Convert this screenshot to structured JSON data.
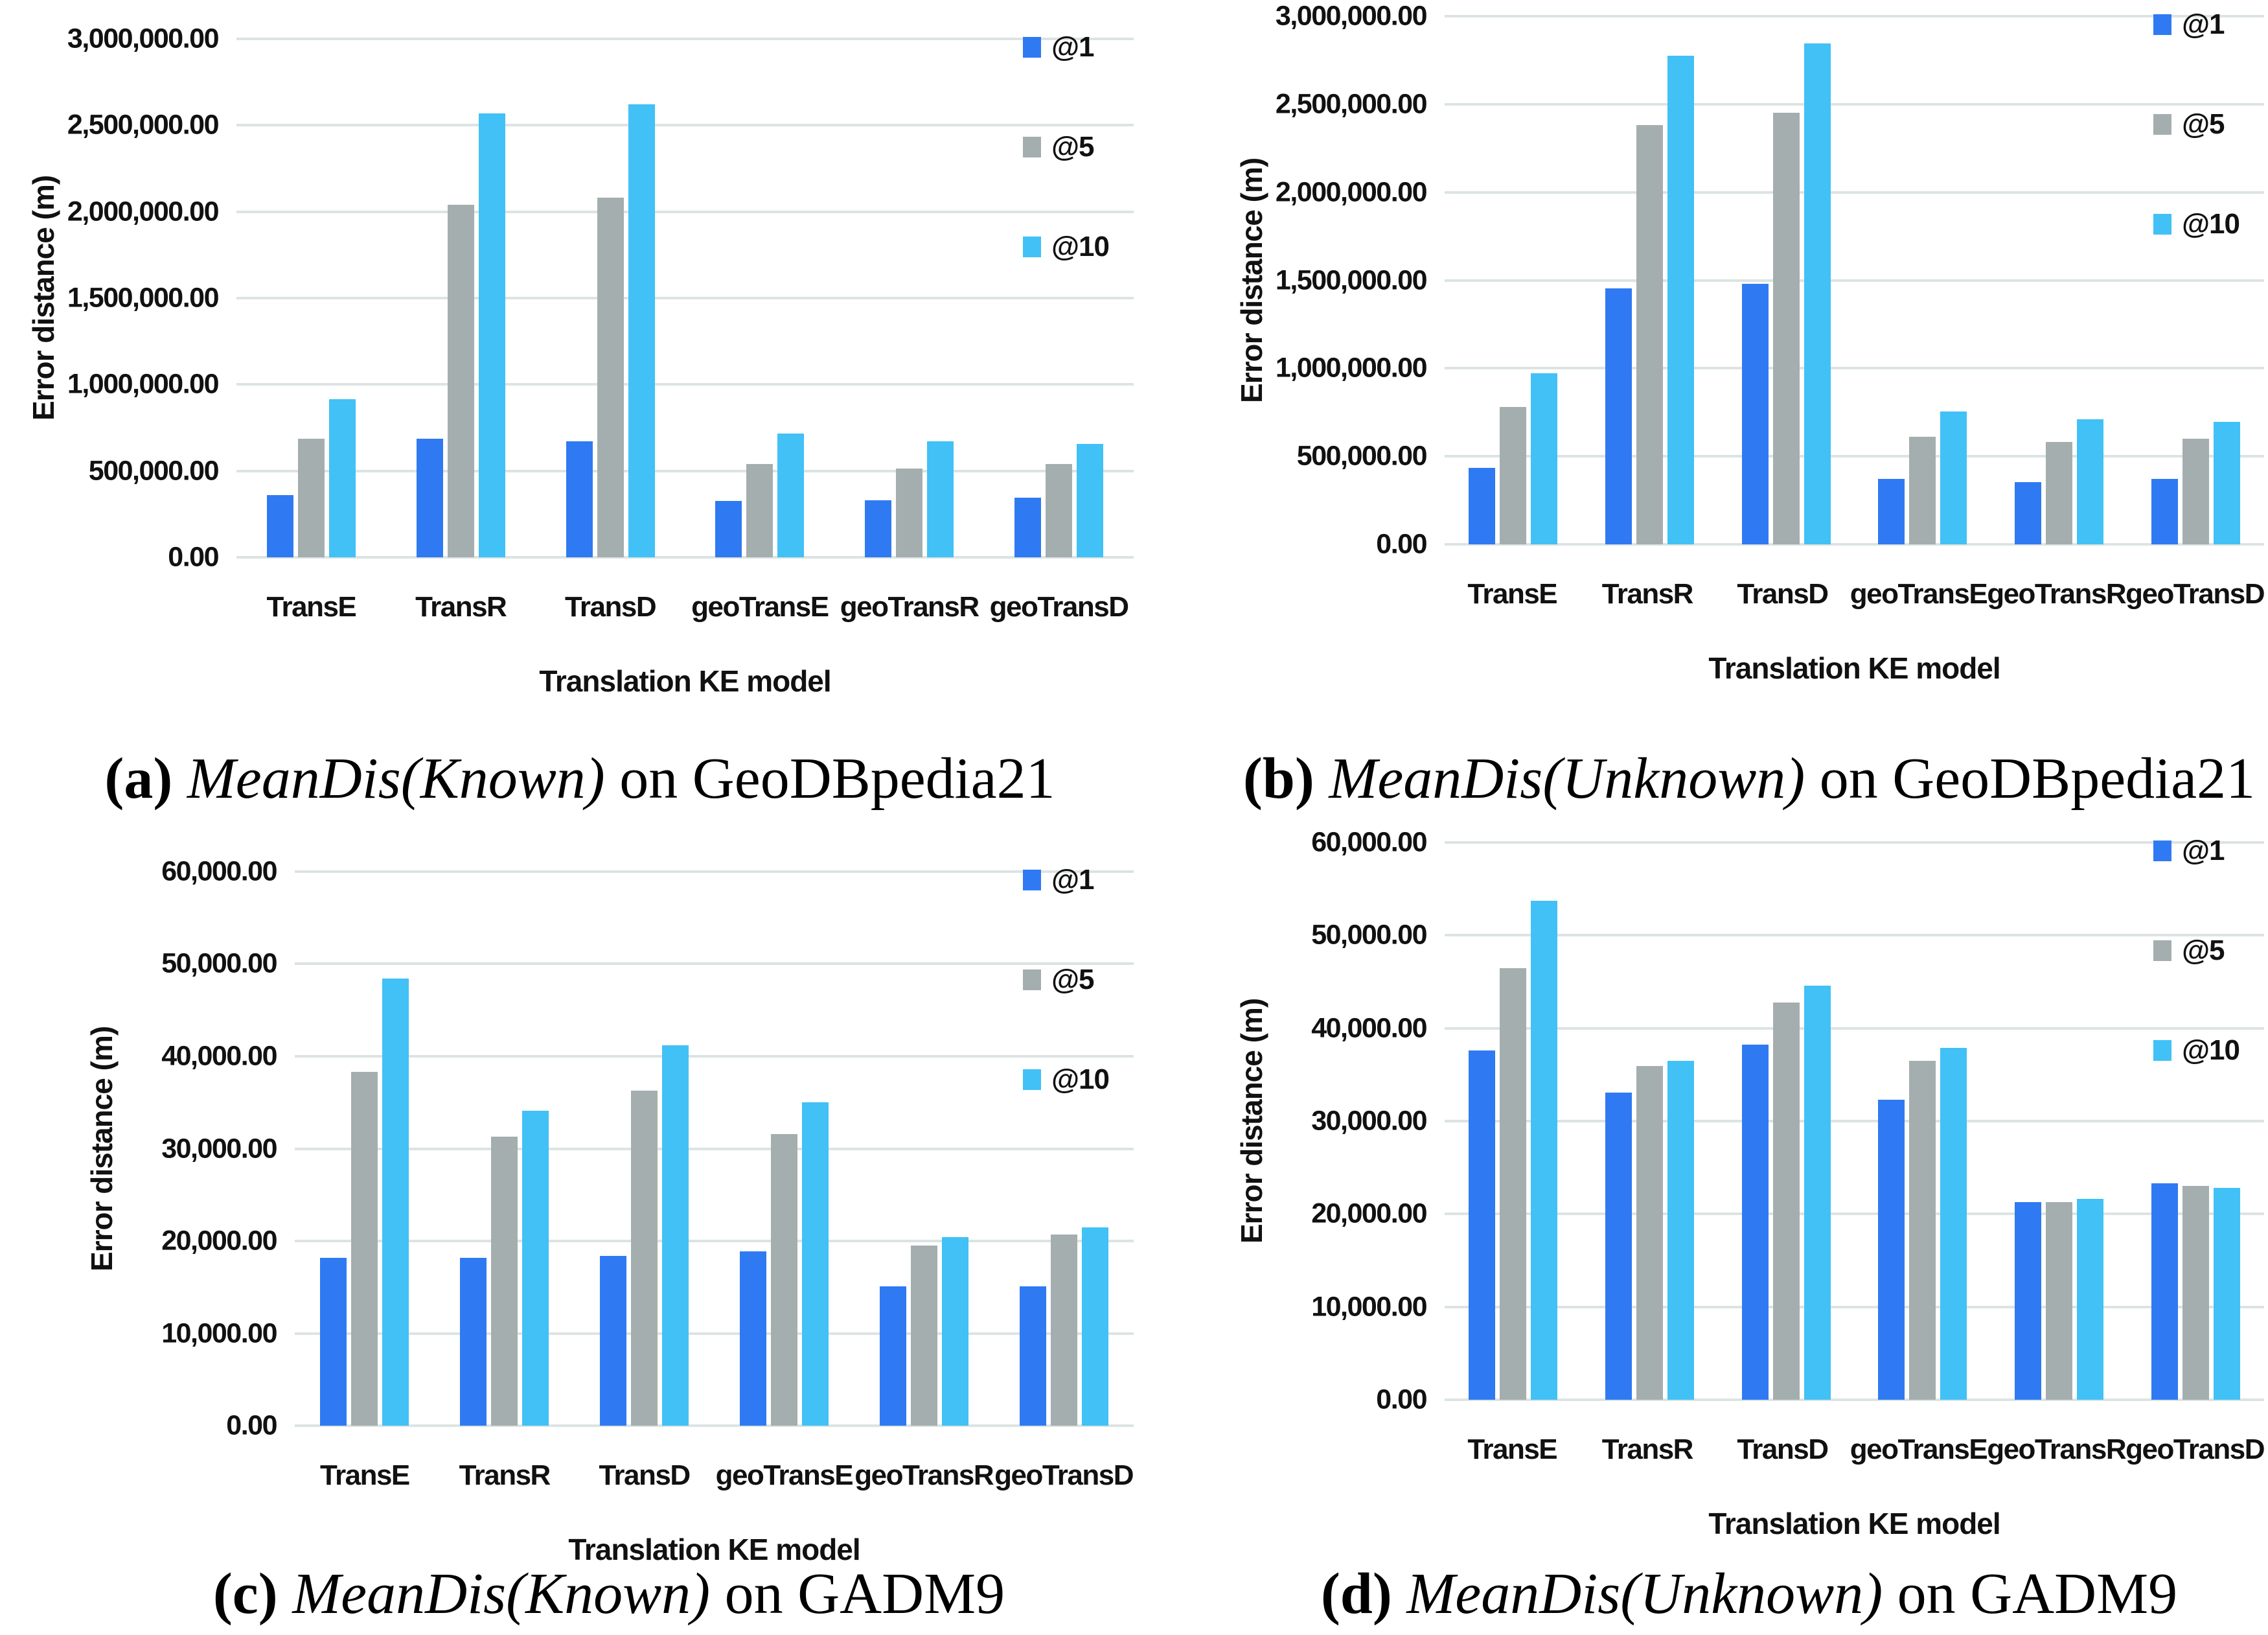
{
  "colors": {
    "at1": "#2F7AF2",
    "at5": "#A5AEAF",
    "at10": "#41C1F5",
    "gridline": "#DCE4E3",
    "text": "#111111"
  },
  "series_labels": [
    "@1",
    "@5",
    "@10"
  ],
  "categories": [
    "TransE",
    "TransR",
    "TransD",
    "geoTransE",
    "geoTransR",
    "geoTransD"
  ],
  "axis": {
    "y_title": "Error distance (m)",
    "x_title": "Translation KE model"
  },
  "chart_data": [
    {
      "id": "a",
      "type": "bar",
      "caption": {
        "label": "(a)",
        "method": "MeanDis(Known)",
        "rest": "on GeoDBpedia21"
      },
      "xlabel": "Translation KE model",
      "ylabel": "Error distance (m)",
      "ylim": [
        0,
        3000000
      ],
      "ytick_step": 500000,
      "ytick_labels": [
        "3,000,000.00",
        "2,500,000.00",
        "2,000,000.00",
        "1,500,000.00",
        "1,000,000.00",
        "500,000.00",
        "0.00"
      ],
      "grid": true,
      "legend_position": "top-right",
      "categories": [
        "TransE",
        "TransR",
        "TransD",
        "geoTransE",
        "geoTransR",
        "geoTransD"
      ],
      "series": [
        {
          "name": "@1",
          "values": [
            360000,
            685000,
            670000,
            325000,
            330000,
            345000
          ]
        },
        {
          "name": "@5",
          "values": [
            685000,
            2040000,
            2080000,
            540000,
            515000,
            540000
          ]
        },
        {
          "name": "@10",
          "values": [
            915000,
            2570000,
            2620000,
            715000,
            670000,
            655000
          ]
        }
      ]
    },
    {
      "id": "b",
      "type": "bar",
      "caption": {
        "label": "(b)",
        "method": "MeanDis(Unknown)",
        "rest": "on GeoDBpedia21"
      },
      "xlabel": "Translation KE model",
      "ylabel": "Error distance (m)",
      "ylim": [
        0,
        3000000
      ],
      "ytick_step": 500000,
      "ytick_labels": [
        "3,000,000.00",
        "2,500,000.00",
        "2,000,000.00",
        "1,500,000.00",
        "1,000,000.00",
        "500,000.00",
        "0.00"
      ],
      "grid": true,
      "legend_position": "top-right",
      "categories": [
        "TransE",
        "TransR",
        "TransD",
        "geoTransE",
        "geoTransR",
        "geoTransD"
      ],
      "series": [
        {
          "name": "@1",
          "values": [
            435000,
            1455000,
            1480000,
            370000,
            355000,
            370000
          ]
        },
        {
          "name": "@5",
          "values": [
            780000,
            2380000,
            2450000,
            610000,
            580000,
            600000
          ]
        },
        {
          "name": "@10",
          "values": [
            970000,
            2775000,
            2845000,
            755000,
            710000,
            695000
          ]
        }
      ]
    },
    {
      "id": "c",
      "type": "bar",
      "caption": {
        "label": "(c)",
        "method": "MeanDis(Known)",
        "rest": "on GADM9"
      },
      "xlabel": "Translation KE model",
      "ylabel": "Error distance (m)",
      "ylim": [
        0,
        60000
      ],
      "ytick_step": 10000,
      "ytick_labels": [
        "60,000.00",
        "50,000.00",
        "40,000.00",
        "30,000.00",
        "20,000.00",
        "10,000.00",
        "0.00"
      ],
      "grid": true,
      "legend_position": "top-right",
      "categories": [
        "TransE",
        "TransR",
        "TransD",
        "geoTransE",
        "geoTransR",
        "geoTransD"
      ],
      "series": [
        {
          "name": "@1",
          "values": [
            18200,
            18200,
            18400,
            18900,
            15100,
            15100
          ]
        },
        {
          "name": "@5",
          "values": [
            38300,
            31300,
            36300,
            31600,
            19500,
            20700
          ]
        },
        {
          "name": "@10",
          "values": [
            48400,
            34100,
            41200,
            35000,
            20400,
            21500
          ]
        }
      ]
    },
    {
      "id": "d",
      "type": "bar",
      "caption": {
        "label": "(d)",
        "method": "MeanDis(Unknown)",
        "rest": "on GADM9"
      },
      "xlabel": "Translation KE model",
      "ylabel": "Error distance (m)",
      "ylim": [
        0,
        60000
      ],
      "ytick_step": 10000,
      "ytick_labels": [
        "60,000.00",
        "50,000.00",
        "40,000.00",
        "30,000.00",
        "20,000.00",
        "10,000.00",
        "0.00"
      ],
      "grid": true,
      "legend_position": "top-right",
      "categories": [
        "TransE",
        "TransR",
        "TransD",
        "geoTransE",
        "geoTransR",
        "geoTransD"
      ],
      "series": [
        {
          "name": "@1",
          "values": [
            37600,
            33100,
            38200,
            32300,
            21300,
            23300
          ]
        },
        {
          "name": "@5",
          "values": [
            46500,
            35900,
            42800,
            36500,
            21300,
            23000
          ]
        },
        {
          "name": "@10",
          "values": [
            53700,
            36500,
            44600,
            37900,
            21600,
            22800
          ]
        }
      ]
    }
  ]
}
